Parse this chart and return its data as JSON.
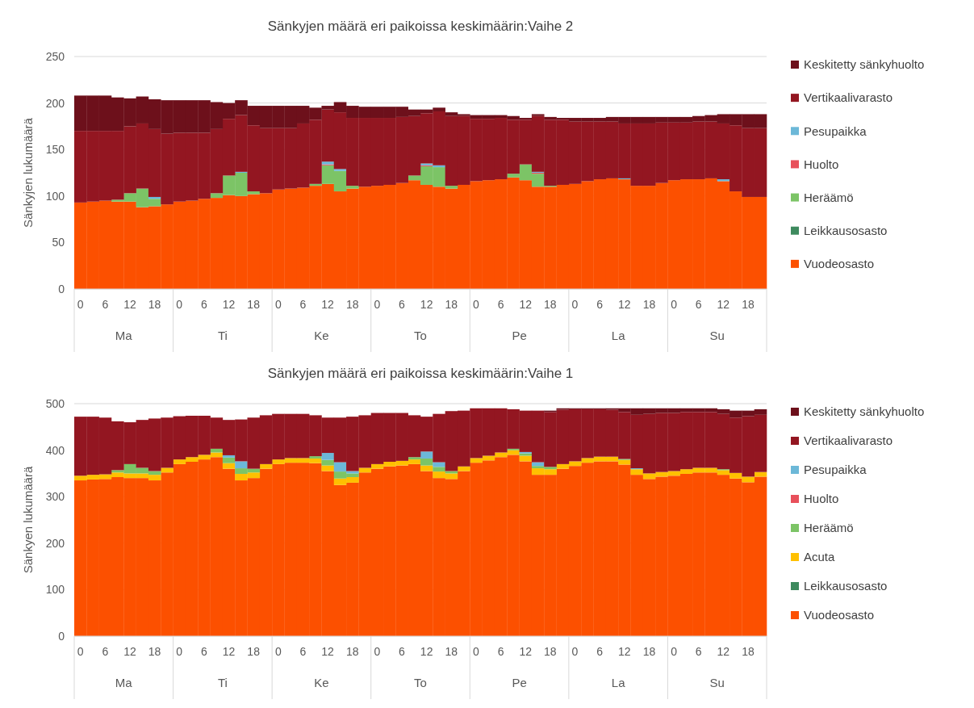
{
  "chart_data": [
    {
      "type": "bar",
      "stacked": true,
      "title": "Sänkyjen määrä eri paikoissa keskimäärin:Vaihe 2",
      "ylabel": "Sänkyjen lukumäärä",
      "ylim": [
        0,
        250
      ],
      "yticks": [
        0,
        50,
        100,
        150,
        200,
        250
      ],
      "categories": [
        "0",
        null,
        "6",
        null,
        "12",
        null,
        "18",
        null,
        "0",
        null,
        "6",
        null,
        "12",
        null,
        "18",
        null,
        "0",
        null,
        "6",
        null,
        "12",
        null,
        "18",
        null,
        "0",
        null,
        "6",
        null,
        "12",
        null,
        "18",
        null,
        "0",
        null,
        "6",
        null,
        "12",
        null,
        "18",
        null,
        "0",
        null,
        "6",
        null,
        "12",
        null,
        "18",
        null,
        "0",
        null,
        "6",
        null,
        "12",
        null,
        "18",
        null
      ],
      "annotations": [
        "Ma",
        "Ti",
        "Ke",
        "To",
        "Pe",
        "La",
        "Su"
      ],
      "grid": "y",
      "legend": "right",
      "series": [
        {
          "name": "Vuodeosasto",
          "color": "#fc5000",
          "values": [
            93,
            94,
            95,
            94,
            94,
            88,
            89,
            91,
            94,
            95,
            97,
            98,
            101,
            100,
            102,
            103,
            107,
            108,
            109,
            111,
            113,
            105,
            108,
            110,
            111,
            112,
            114,
            117,
            112,
            110,
            108,
            112,
            116,
            117,
            118,
            120,
            117,
            110,
            110,
            112,
            113,
            116,
            118,
            119,
            118,
            111,
            111,
            114,
            117,
            118,
            118,
            119,
            116,
            105,
            99,
            99
          ]
        },
        {
          "name": "Leikkausosasto",
          "color": "#3e8a5e",
          "values": [
            0,
            0,
            0,
            0,
            0,
            0,
            0,
            0,
            0,
            0,
            0,
            0,
            0,
            0,
            0,
            0,
            0,
            0,
            0,
            0,
            0,
            0,
            0,
            0,
            0,
            0,
            0,
            0,
            0,
            0,
            0,
            0,
            0,
            0,
            0,
            0,
            0,
            0,
            0,
            0,
            0,
            0,
            0,
            0,
            0,
            0,
            0,
            0,
            0,
            0,
            0,
            0,
            0,
            0,
            0,
            0
          ]
        },
        {
          "name": "Heräämö",
          "color": "#7cc466",
          "values": [
            0,
            0,
            0,
            2,
            9,
            20,
            8,
            0,
            0,
            0,
            0,
            5,
            21,
            25,
            3,
            0,
            0,
            0,
            0,
            2,
            20,
            22,
            3,
            0,
            0,
            0,
            0,
            5,
            20,
            21,
            3,
            0,
            0,
            0,
            0,
            4,
            17,
            14,
            1,
            0,
            0,
            0,
            0,
            0,
            0,
            0,
            0,
            0,
            0,
            0,
            0,
            0,
            0,
            0,
            0,
            0
          ]
        },
        {
          "name": "Huolto",
          "color": "#e8505b",
          "values": [
            0,
            0,
            0,
            0,
            0,
            0,
            0,
            0,
            0,
            0,
            0,
            0,
            0,
            0,
            0,
            0,
            0,
            0,
            0,
            0,
            1,
            0,
            0,
            0,
            0,
            0,
            0,
            0,
            1,
            0,
            0,
            0,
            0,
            0,
            0,
            0,
            0,
            1,
            0,
            0,
            0,
            0,
            0,
            0,
            0,
            0,
            0,
            0,
            0,
            0,
            0,
            0,
            0,
            0,
            0,
            0
          ]
        },
        {
          "name": "Pesupaikka",
          "color": "#6cb8d8",
          "values": [
            0,
            0,
            0,
            0,
            0,
            0,
            2,
            0,
            0,
            0,
            0,
            0,
            0,
            1,
            0,
            0,
            0,
            0,
            0,
            0,
            3,
            2,
            0,
            0,
            0,
            0,
            0,
            0,
            2,
            2,
            0,
            0,
            0,
            0,
            0,
            0,
            0,
            1,
            0,
            0,
            0,
            0,
            0,
            0,
            1,
            0,
            0,
            0,
            0,
            0,
            0,
            0,
            2,
            0,
            0,
            0
          ]
        },
        {
          "name": "Vertikaalivarasto",
          "color": "#931621",
          "values": [
            77,
            76,
            75,
            74,
            72,
            70,
            73,
            76,
            74,
            73,
            71,
            69,
            61,
            61,
            71,
            70,
            66,
            65,
            69,
            69,
            56,
            61,
            73,
            74,
            73,
            72,
            71,
            64,
            54,
            58,
            75,
            74,
            67,
            66,
            66,
            58,
            48,
            60,
            71,
            70,
            67,
            64,
            62,
            61,
            59,
            67,
            67,
            65,
            62,
            61,
            62,
            61,
            60,
            71,
            74,
            74
          ]
        },
        {
          "name": "Keskitetty sänkyhuolto",
          "color": "#6d101b",
          "values": [
            38,
            38,
            38,
            36,
            30,
            29,
            32,
            36,
            35,
            35,
            35,
            29,
            17,
            16,
            21,
            24,
            24,
            24,
            19,
            13,
            4,
            11,
            13,
            12,
            12,
            12,
            11,
            7,
            4,
            4,
            4,
            2,
            4,
            4,
            3,
            4,
            2,
            2,
            3,
            2,
            4,
            4,
            4,
            5,
            7,
            7,
            7,
            6,
            6,
            6,
            6,
            7,
            10,
            12,
            15,
            15
          ]
        }
      ]
    },
    {
      "type": "bar",
      "stacked": true,
      "title": "Sänkyjen määrä eri paikoissa keskimäärin:Vaihe 1",
      "ylabel": "Sänkyen lukumäärä",
      "ylim": [
        0,
        500
      ],
      "yticks": [
        0,
        100,
        200,
        300,
        400,
        500
      ],
      "categories": [
        "0",
        null,
        "6",
        null,
        "12",
        null,
        "18",
        null,
        "0",
        null,
        "6",
        null,
        "12",
        null,
        "18",
        null,
        "0",
        null,
        "6",
        null,
        "12",
        null,
        "18",
        null,
        "0",
        null,
        "6",
        null,
        "12",
        null,
        "18",
        null,
        "0",
        null,
        "6",
        null,
        "12",
        null,
        "18",
        null,
        "0",
        null,
        "6",
        null,
        "12",
        null,
        "18",
        null,
        "0",
        null,
        "6",
        null,
        "12",
        null,
        "18",
        null
      ],
      "annotations": [
        "Ma",
        "Ti",
        "Ke",
        "To",
        "Pe",
        "La",
        "Su"
      ],
      "grid": "y",
      "legend": "right",
      "series": [
        {
          "name": "Vuodeosasto",
          "color": "#fc5000",
          "values": [
            335,
            337,
            338,
            342,
            340,
            340,
            335,
            352,
            370,
            375,
            380,
            385,
            360,
            335,
            340,
            360,
            370,
            373,
            373,
            372,
            355,
            325,
            330,
            352,
            360,
            365,
            367,
            370,
            355,
            340,
            338,
            355,
            373,
            378,
            385,
            390,
            376,
            347,
            347,
            360,
            366,
            373,
            376,
            376,
            369,
            347,
            338,
            343,
            345,
            349,
            352,
            352,
            347,
            339,
            331,
            343
          ]
        },
        {
          "name": "Leikkausosasto",
          "color": "#3e8a5e",
          "values": [
            0,
            0,
            0,
            0,
            0,
            0,
            0,
            0,
            0,
            0,
            0,
            0,
            0,
            0,
            0,
            0,
            0,
            0,
            0,
            0,
            0,
            0,
            0,
            0,
            0,
            0,
            0,
            0,
            0,
            0,
            0,
            0,
            0,
            0,
            0,
            0,
            0,
            0,
            0,
            0,
            0,
            0,
            0,
            0,
            0,
            0,
            0,
            0,
            0,
            0,
            0,
            0,
            0,
            0,
            0,
            0
          ]
        },
        {
          "name": "Acuta",
          "color": "#ffc000",
          "values": [
            10,
            10,
            10,
            10,
            10,
            10,
            12,
            10,
            10,
            10,
            10,
            10,
            12,
            14,
            12,
            10,
            10,
            10,
            10,
            10,
            12,
            14,
            12,
            10,
            10,
            10,
            10,
            10,
            12,
            14,
            12,
            10,
            10,
            10,
            10,
            10,
            12,
            14,
            12,
            10,
            10,
            10,
            10,
            10,
            10,
            12,
            12,
            10,
            10,
            10,
            10,
            10,
            10,
            12,
            12,
            10
          ]
        },
        {
          "name": "Heräämö",
          "color": "#7cc466",
          "values": [
            0,
            0,
            0,
            5,
            20,
            12,
            8,
            0,
            0,
            0,
            0,
            8,
            12,
            12,
            8,
            0,
            0,
            0,
            0,
            5,
            12,
            15,
            8,
            0,
            0,
            0,
            0,
            5,
            15,
            10,
            5,
            0,
            0,
            0,
            0,
            3,
            5,
            5,
            5,
            0,
            0,
            0,
            0,
            0,
            2,
            0,
            0,
            0,
            0,
            0,
            0,
            0,
            2,
            0,
            0,
            0
          ]
        },
        {
          "name": "Huolto",
          "color": "#e8505b",
          "values": [
            0,
            0,
            0,
            0,
            0,
            0,
            0,
            0,
            0,
            0,
            0,
            0,
            0,
            0,
            0,
            0,
            0,
            0,
            0,
            0,
            0,
            0,
            0,
            0,
            0,
            0,
            0,
            0,
            0,
            0,
            0,
            0,
            0,
            0,
            0,
            0,
            0,
            0,
            0,
            0,
            0,
            0,
            0,
            0,
            0,
            0,
            0,
            0,
            0,
            0,
            0,
            0,
            0,
            0,
            0,
            0
          ]
        },
        {
          "name": "Pesupaikka",
          "color": "#6cb8d8",
          "values": [
            0,
            0,
            0,
            0,
            0,
            0,
            0,
            0,
            0,
            0,
            0,
            0,
            5,
            15,
            0,
            0,
            0,
            0,
            0,
            0,
            15,
            20,
            5,
            0,
            0,
            0,
            0,
            0,
            15,
            10,
            0,
            0,
            0,
            0,
            0,
            0,
            3,
            8,
            0,
            0,
            0,
            0,
            0,
            0,
            0,
            2,
            0,
            0,
            0,
            0,
            0,
            0,
            0,
            0,
            0,
            0
          ]
        },
        {
          "name": "Vertikaalivarasto",
          "color": "#931621",
          "values": [
            127,
            125,
            122,
            105,
            90,
            103,
            113,
            108,
            93,
            89,
            84,
            67,
            76,
            90,
            110,
            105,
            98,
            95,
            95,
            88,
            76,
            96,
            117,
            113,
            110,
            105,
            103,
            90,
            75,
            104,
            129,
            120,
            107,
            102,
            95,
            85,
            89,
            111,
            118,
            117,
            112,
            105,
            102,
            101,
            101,
            115,
            128,
            127,
            125,
            123,
            120,
            120,
            119,
            119,
            130,
            123
          ]
        },
        {
          "name": "Keskitetty sänkyhuolto",
          "color": "#6d101b",
          "values": [
            0,
            0,
            0,
            0,
            0,
            0,
            0,
            0,
            0,
            0,
            0,
            0,
            0,
            0,
            0,
            0,
            0,
            0,
            0,
            0,
            0,
            0,
            0,
            0,
            0,
            0,
            0,
            0,
            0,
            0,
            0,
            0,
            0,
            0,
            0,
            0,
            0,
            0,
            3,
            3,
            2,
            2,
            2,
            3,
            8,
            14,
            12,
            10,
            10,
            8,
            8,
            8,
            10,
            15,
            12,
            12
          ]
        }
      ]
    }
  ]
}
